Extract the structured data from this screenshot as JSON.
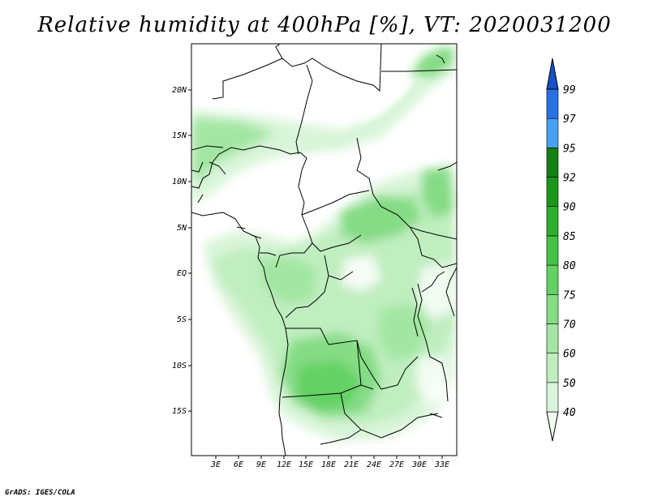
{
  "title": "Relative humidity at 400hPa [%], VT: 2020031200",
  "footer": "GrADS: IGES/COLA",
  "map": {
    "lon_labels": [
      "3E",
      "6E",
      "9E",
      "12E",
      "15E",
      "18E",
      "21E",
      "24E",
      "27E",
      "30E",
      "33E"
    ],
    "lat_labels": [
      "20N",
      "15N",
      "10N",
      "5N",
      "EQ",
      "5S",
      "10S",
      "15S"
    ]
  },
  "colorbar": {
    "levels": [
      "40",
      "50",
      "60",
      "70",
      "75",
      "80",
      "85",
      "90",
      "92",
      "95",
      "97",
      "99"
    ],
    "colors": [
      "#f0fbf0",
      "#d9f5d9",
      "#bfeebf",
      "#a3e6a3",
      "#85dc85",
      "#63d163",
      "#46c246",
      "#2eaf2e",
      "#1c951c",
      "#148014",
      "#4aa0f0",
      "#2870e6",
      "#1450c8"
    ]
  }
}
